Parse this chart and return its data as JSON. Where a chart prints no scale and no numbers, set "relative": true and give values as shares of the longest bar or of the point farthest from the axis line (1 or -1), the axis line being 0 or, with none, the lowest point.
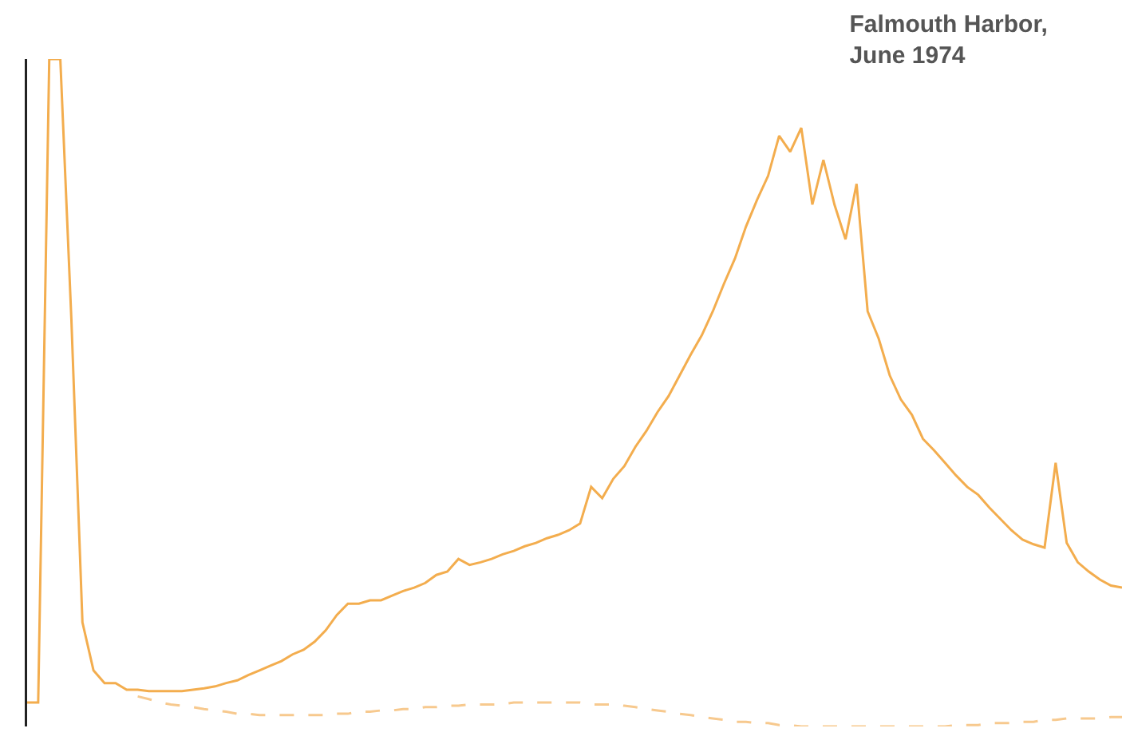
{
  "chart_data": {
    "type": "line",
    "title": "Falmouth Harbor,\nJune 1974",
    "relative": true,
    "marker": "none",
    "categories": [
      null,
      null,
      null,
      null,
      null,
      null,
      null,
      null,
      null,
      null,
      null,
      null,
      null,
      null,
      null,
      null,
      null,
      null,
      null,
      null,
      null,
      null,
      null,
      null,
      null,
      null,
      null,
      null,
      null,
      null,
      null,
      null,
      null,
      null,
      null,
      null,
      null,
      null,
      null,
      null,
      null,
      null,
      null,
      null,
      null,
      null,
      null,
      null,
      null,
      null,
      null,
      null,
      null,
      null,
      null,
      null,
      null,
      null,
      null,
      null,
      null,
      null,
      null,
      null,
      null,
      null,
      null,
      null,
      null,
      null,
      null,
      null,
      null,
      null,
      null,
      null,
      null,
      null,
      null,
      null,
      null,
      null,
      null,
      null,
      null,
      null,
      null,
      null,
      null,
      null,
      null,
      null,
      null,
      null,
      null,
      null,
      null,
      null,
      null,
      null
    ],
    "series": [
      {
        "color": "#f3ad4e",
        "line_style": "solid",
        "values": [
          0.036,
          0.036,
          1,
          1,
          0.61,
          0.156,
          0.084,
          0.065,
          0.065,
          0.055,
          0.055,
          0.053,
          0.053,
          0.053,
          0.053,
          0.055,
          0.057,
          0.06,
          0.065,
          0.069,
          0.077,
          0.084,
          0.091,
          0.098,
          0.108,
          0.115,
          0.127,
          0.144,
          0.167,
          0.184,
          0.184,
          0.189,
          0.189,
          0.196,
          0.203,
          0.208,
          0.215,
          0.227,
          0.232,
          0.251,
          0.242,
          0.246,
          0.251,
          0.258,
          0.263,
          0.27,
          0.275,
          0.282,
          0.287,
          0.294,
          0.304,
          0.359,
          0.342,
          0.371,
          0.39,
          0.419,
          0.443,
          0.471,
          0.495,
          0.526,
          0.557,
          0.586,
          0.622,
          0.663,
          0.701,
          0.749,
          0.789,
          0.825,
          0.885,
          0.861,
          0.897,
          0.782,
          0.849,
          0.782,
          0.73,
          0.813,
          0.622,
          0.581,
          0.526,
          0.49,
          0.467,
          0.431,
          0.414,
          0.395,
          0.376,
          0.359,
          0.347,
          0.328,
          0.311,
          0.294,
          0.28,
          0.273,
          0.268,
          0.395,
          0.275,
          0.246,
          0.232,
          0.22,
          0.211,
          0.208
        ]
      },
      {
        "color": "#f7c98e",
        "line_style": "dashed",
        "values": [
          null,
          null,
          null,
          null,
          null,
          null,
          null,
          null,
          null,
          null,
          0.045,
          0.041,
          0.036,
          0.033,
          0.031,
          0.029,
          0.026,
          0.024,
          0.022,
          0.019,
          0.019,
          0.017,
          0.017,
          0.017,
          0.017,
          0.017,
          0.017,
          0.017,
          0.019,
          0.019,
          0.022,
          0.022,
          0.024,
          0.024,
          0.026,
          0.026,
          0.029,
          0.029,
          0.031,
          0.031,
          0.033,
          0.033,
          0.033,
          0.033,
          0.036,
          0.036,
          0.036,
          0.036,
          0.036,
          0.036,
          0.036,
          0.033,
          0.033,
          0.033,
          0.031,
          0.029,
          0.026,
          0.024,
          0.022,
          0.019,
          0.017,
          0.014,
          0.012,
          0.01,
          0.007,
          0.007,
          0.005,
          0.005,
          0.002,
          0.002,
          0,
          0,
          0,
          0,
          0,
          0,
          0,
          0,
          0,
          0,
          0,
          0,
          0,
          0,
          0.002,
          0.002,
          0.002,
          0.005,
          0.005,
          0.005,
          0.007,
          0.007,
          0.01,
          0.01,
          0.012,
          0.012,
          0.012,
          0.012,
          0.014,
          0.014
        ]
      }
    ]
  }
}
